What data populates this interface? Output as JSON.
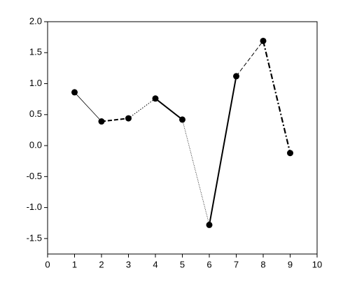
{
  "chart_data": {
    "type": "line",
    "x": [
      1,
      2,
      3,
      4,
      5,
      6,
      7,
      8,
      9
    ],
    "series": [
      {
        "color": "#000000",
        "marker": "circle",
        "values": [
          0.86,
          0.39,
          0.44,
          0.76,
          0.42,
          -1.28,
          1.12,
          1.69,
          -0.12
        ],
        "segment_styles": [
          "thin-solid",
          "thick-dashed",
          "dotted",
          "thick-solid",
          "thin-dotted",
          "thick-solid",
          "dashed",
          "thick-dash-dot"
        ]
      }
    ],
    "xlim": [
      0,
      10
    ],
    "xticks": [
      0,
      1,
      2,
      3,
      4,
      5,
      6,
      7,
      8,
      9,
      10
    ],
    "ylim": [
      -1.75,
      2.0
    ],
    "yticks": [
      -1.5,
      {
        "value": -1.0,
        "label": "-1.0"
      },
      -0.5,
      {
        "value": 0.0,
        "label": "0.0"
      },
      0.5,
      {
        "value": 1.0,
        "label": "1.0"
      },
      1.5,
      {
        "value": 2.0,
        "label": "2.0"
      }
    ]
  }
}
